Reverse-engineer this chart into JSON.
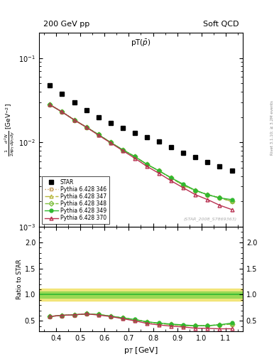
{
  "title_top_left": "200 GeV pp",
  "title_top_right": "Soft QCD",
  "plot_title": "pT($\\bar{p}$)",
  "right_label": "Rivet 3.1.10; ≥ 3.2M events",
  "watermark": "(STAR_2008_S7869363)",
  "xlabel": "p_T [GeV]",
  "ylabel": "\\frac{1}{2\\pi p_T} \\frac{d^2N}{dp_T\\, dy} [GeV^{-2}]",
  "ratio_ylabel": "Ratio to STAR",
  "xlim": [
    0.33,
    1.17
  ],
  "ylim_main": [
    0.001,
    0.2
  ],
  "ylim_ratio": [
    0.3,
    2.3
  ],
  "star_x": [
    0.375,
    0.425,
    0.475,
    0.525,
    0.575,
    0.625,
    0.675,
    0.725,
    0.775,
    0.825,
    0.875,
    0.925,
    0.975,
    1.025,
    1.075,
    1.125
  ],
  "star_y": [
    0.048,
    0.038,
    0.03,
    0.024,
    0.02,
    0.017,
    0.0148,
    0.013,
    0.0115,
    0.0102,
    0.0088,
    0.0076,
    0.0067,
    0.0059,
    0.0052,
    0.0046
  ],
  "p346_x": [
    0.375,
    0.425,
    0.475,
    0.525,
    0.575,
    0.625,
    0.675,
    0.725,
    0.775,
    0.825,
    0.875,
    0.925,
    0.975,
    1.025,
    1.075,
    1.125
  ],
  "p346_y": [
    0.028,
    0.023,
    0.0185,
    0.0152,
    0.0124,
    0.01,
    0.0082,
    0.0068,
    0.0055,
    0.0046,
    0.0038,
    0.0031,
    0.0027,
    0.0024,
    0.0022,
    0.002
  ],
  "p347_x": [
    0.375,
    0.425,
    0.475,
    0.525,
    0.575,
    0.625,
    0.675,
    0.725,
    0.775,
    0.825,
    0.875,
    0.925,
    0.975,
    1.025,
    1.075,
    1.125
  ],
  "p347_y": [
    0.028,
    0.023,
    0.0185,
    0.0152,
    0.0124,
    0.01,
    0.0082,
    0.0068,
    0.0055,
    0.0046,
    0.0038,
    0.0031,
    0.0027,
    0.0024,
    0.0022,
    0.002
  ],
  "p348_x": [
    0.375,
    0.425,
    0.475,
    0.525,
    0.575,
    0.625,
    0.675,
    0.725,
    0.775,
    0.825,
    0.875,
    0.925,
    0.975,
    1.025,
    1.075,
    1.125
  ],
  "p348_y": [
    0.028,
    0.023,
    0.0185,
    0.0152,
    0.0124,
    0.01,
    0.0082,
    0.0068,
    0.0055,
    0.0046,
    0.0038,
    0.0031,
    0.0027,
    0.0024,
    0.0022,
    0.002
  ],
  "p349_x": [
    0.375,
    0.425,
    0.475,
    0.525,
    0.575,
    0.625,
    0.675,
    0.725,
    0.775,
    0.825,
    0.875,
    0.925,
    0.975,
    1.025,
    1.075,
    1.125
  ],
  "p349_y": [
    0.028,
    0.023,
    0.0185,
    0.0152,
    0.0124,
    0.01,
    0.0082,
    0.0068,
    0.0055,
    0.0046,
    0.0038,
    0.0032,
    0.0027,
    0.0024,
    0.0022,
    0.0021
  ],
  "p370_x": [
    0.375,
    0.425,
    0.475,
    0.525,
    0.575,
    0.625,
    0.675,
    0.725,
    0.775,
    0.825,
    0.875,
    0.925,
    0.975,
    1.025,
    1.075,
    1.125
  ],
  "p370_y": [
    0.028,
    0.023,
    0.0185,
    0.0152,
    0.0122,
    0.0099,
    0.008,
    0.0065,
    0.0052,
    0.0043,
    0.0035,
    0.0029,
    0.0024,
    0.0021,
    0.0018,
    0.0016
  ],
  "r346_y": [
    0.583,
    0.605,
    0.614,
    0.633,
    0.62,
    0.588,
    0.554,
    0.523,
    0.478,
    0.451,
    0.432,
    0.408,
    0.403,
    0.407,
    0.423,
    0.435
  ],
  "r347_y": [
    0.583,
    0.605,
    0.614,
    0.633,
    0.62,
    0.588,
    0.554,
    0.523,
    0.478,
    0.451,
    0.432,
    0.408,
    0.403,
    0.407,
    0.423,
    0.435
  ],
  "r348_y": [
    0.583,
    0.605,
    0.614,
    0.633,
    0.62,
    0.588,
    0.554,
    0.523,
    0.478,
    0.451,
    0.432,
    0.408,
    0.403,
    0.407,
    0.423,
    0.435
  ],
  "r349_y": [
    0.583,
    0.605,
    0.614,
    0.633,
    0.62,
    0.59,
    0.556,
    0.525,
    0.48,
    0.456,
    0.437,
    0.421,
    0.406,
    0.407,
    0.423,
    0.457
  ],
  "r370_y": [
    0.583,
    0.605,
    0.614,
    0.633,
    0.61,
    0.582,
    0.54,
    0.5,
    0.45,
    0.421,
    0.398,
    0.382,
    0.358,
    0.356,
    0.346,
    0.348
  ],
  "color_346": "#c8a060",
  "color_347": "#b8b840",
  "color_348": "#80c040",
  "color_349": "#30b830",
  "color_370": "#b83050",
  "band_outer_color": "#f0e060",
  "band_inner_color": "#90d850",
  "background": "#ffffff"
}
